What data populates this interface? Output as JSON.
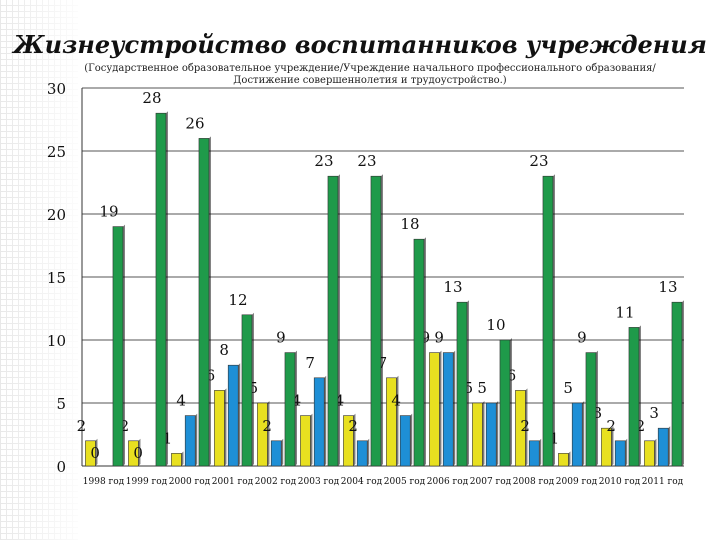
{
  "title": "Жизнеустройство воспитанников учреждения",
  "subtitle": "(Государственное образовательное учреждение/Учреждение начального профессионального образования/Достижение совершеннолетия и трудоустройство.)",
  "chart_data": {
    "type": "bar",
    "categories": [
      "1998 год",
      "1999 год",
      "2000 год",
      "2001 год",
      "2002 год",
      "2003 год",
      "2004 год",
      "2005 год",
      "2006 год",
      "2007 год",
      "2008 год",
      "2009 год",
      "2010 год",
      "2011 год"
    ],
    "series": [
      {
        "color": "#e8e020",
        "values": [
          2,
          2,
          1,
          6,
          5,
          4,
          4,
          7,
          9,
          5,
          6,
          1,
          3,
          2
        ]
      },
      {
        "color": "#1e8fd6",
        "values": [
          0,
          0,
          4,
          8,
          2,
          7,
          2,
          4,
          9,
          5,
          2,
          5,
          2,
          3
        ]
      },
      {
        "color": "#1f9a4a",
        "values": [
          19,
          28,
          26,
          12,
          9,
          23,
          23,
          18,
          13,
          10,
          23,
          9,
          11,
          13
        ]
      }
    ],
    "ylim": [
      0,
      30
    ],
    "yticks": [
      0,
      5,
      10,
      15,
      20,
      25,
      30
    ],
    "grid": true,
    "legend": "none"
  }
}
